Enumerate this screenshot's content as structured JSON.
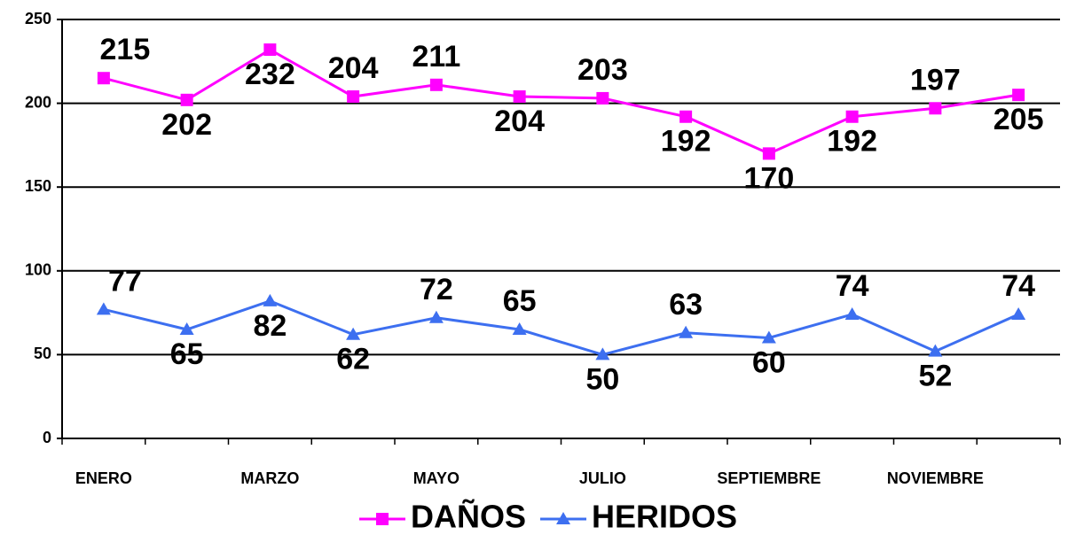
{
  "chart_data": {
    "type": "line",
    "categories": [
      "ENERO",
      null,
      "MARZO",
      null,
      "MAYO",
      null,
      "JULIO",
      null,
      "SEPTIEMBRE",
      null,
      "NOVIEMBRE",
      null
    ],
    "series": [
      {
        "name": "DAÑOS",
        "color": "#ff00ff",
        "marker": "square",
        "values": [
          215,
          202,
          232,
          204,
          211,
          204,
          203,
          192,
          170,
          192,
          197,
          205
        ]
      },
      {
        "name": "HERIDOS",
        "color": "#3d6ff0",
        "marker": "triangle",
        "values": [
          77,
          65,
          82,
          62,
          72,
          65,
          50,
          63,
          60,
          74,
          52,
          74
        ]
      }
    ],
    "ylim": [
      0,
      250
    ],
    "yticks": [
      0,
      50,
      100,
      150,
      200,
      250
    ],
    "grid": true,
    "legend": "bottom"
  }
}
